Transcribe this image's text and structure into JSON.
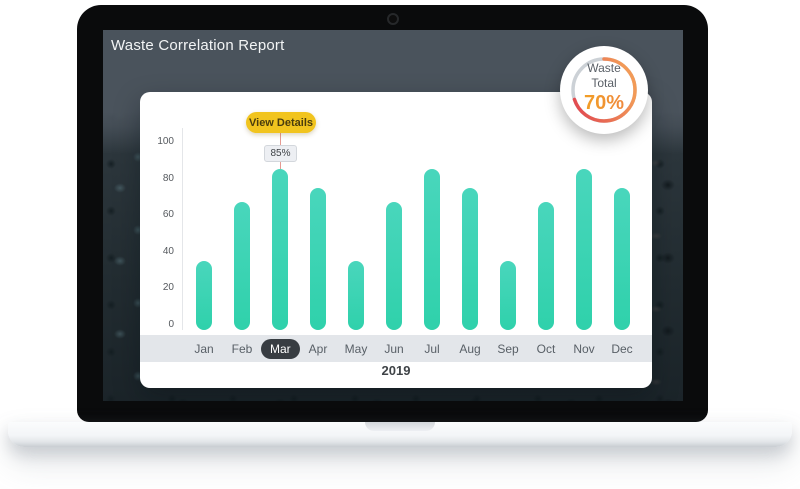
{
  "screen": {
    "title": "Waste Correlation Report"
  },
  "badge": {
    "label_line1": "Waste",
    "label_line2": "Total",
    "value": "70%",
    "percent": 70
  },
  "chart": {
    "tooltip_label": "View Details",
    "callout_value": "85%",
    "selected_month": "Mar",
    "year_label": "2019"
  },
  "chart_data": {
    "type": "bar",
    "title": "Waste Correlation Report",
    "categories": [
      "Jan",
      "Feb",
      "Mar",
      "Apr",
      "May",
      "Jun",
      "Jul",
      "Aug",
      "Sep",
      "Oct",
      "Nov",
      "Dec"
    ],
    "values": [
      35,
      67,
      85,
      75,
      35,
      67,
      85,
      75,
      35,
      67,
      85,
      75
    ],
    "xlabel": "2019",
    "ylabel": "",
    "ylim": [
      0,
      100
    ],
    "yticks": [
      0,
      20,
      40,
      60,
      80,
      100
    ],
    "grid": false,
    "legend": false,
    "selected": {
      "category": "Mar",
      "value": 85,
      "label": "85%",
      "tooltip": "View Details"
    },
    "bar_gradient": [
      "#49d6bc",
      "#2fd1ab"
    ]
  },
  "colors": {
    "header_slate": "#4a535c",
    "tooltip_yellow": "#f1c41e",
    "selected_pill_dark": "#383d42",
    "month_strip_gray": "#e3e6ea",
    "ring_red": "#e04250",
    "ring_orange": "#f29a57",
    "ring_gray": "#ccd1d6",
    "value_orange": "#f5a31c",
    "bar_teal_top": "#49d6bc",
    "bar_teal_bottom": "#2fd1ab"
  }
}
